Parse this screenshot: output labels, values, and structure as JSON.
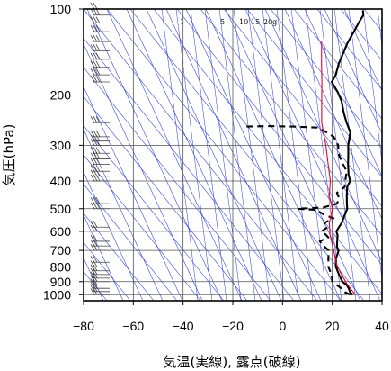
{
  "chart_data": {
    "type": "line",
    "xlabel": "気温(実線), 露点(破線)",
    "ylabel": "気圧(hPa)",
    "xlim": [
      -80,
      40
    ],
    "ylim": [
      1050,
      100
    ],
    "y_scale": "log",
    "x_ticks": [
      -80,
      -60,
      -40,
      -20,
      0,
      20,
      40
    ],
    "x_tick_labels": [
      "−80",
      "−60",
      "−40",
      "−20",
      "0",
      "20",
      "40"
    ],
    "y_ticks": [
      100,
      200,
      300,
      400,
      500,
      600,
      700,
      800,
      900,
      1000
    ],
    "y_tick_labels": [
      "100",
      "200",
      "300",
      "400",
      "500",
      "600",
      "700",
      "800",
      "900",
      "1000"
    ],
    "grid": true,
    "mixing_ratio_labels": [
      "1",
      "5",
      "10",
      "15",
      "20g"
    ],
    "colors": {
      "temperature": "#000000",
      "dewpoint": "#000000",
      "parcel": "#e8002b",
      "background_lines": "#2a37d8",
      "grid": "#555555"
    },
    "series": [
      {
        "id": "temperature",
        "style": "solid",
        "points": [
          [
            26,
            1000
          ],
          [
            24,
            980
          ],
          [
            22,
            950
          ],
          [
            20,
            925
          ],
          [
            17,
            900
          ],
          [
            13,
            850
          ],
          [
            9,
            800
          ],
          [
            6,
            750
          ],
          [
            4,
            700
          ],
          [
            2,
            680
          ],
          [
            0,
            650
          ],
          [
            -2,
            620
          ],
          [
            -4,
            600
          ],
          [
            -5,
            560
          ],
          [
            -7,
            520
          ],
          [
            -8,
            500
          ],
          [
            -10,
            480
          ],
          [
            -13,
            450
          ],
          [
            -16,
            420
          ],
          [
            -17,
            400
          ],
          [
            -20,
            380
          ],
          [
            -24,
            350
          ],
          [
            -28,
            320
          ],
          [
            -31,
            300
          ],
          [
            -35,
            270
          ],
          [
            -40,
            250
          ],
          [
            -45,
            230
          ],
          [
            -50,
            210
          ],
          [
            -55,
            195
          ],
          [
            -61,
            180
          ],
          [
            -62,
            170
          ],
          [
            -63,
            165
          ],
          [
            -65,
            155
          ],
          [
            -67,
            143
          ],
          [
            -69,
            132
          ],
          [
            -70,
            125
          ],
          [
            -71,
            118
          ],
          [
            -72,
            112
          ],
          [
            -73,
            105
          ],
          [
            -75,
            101
          ]
        ]
      },
      {
        "id": "dewpoint",
        "style": "dashed",
        "points": [
          [
            25,
            1000
          ],
          [
            22,
            980
          ],
          [
            19,
            950
          ],
          [
            16,
            925
          ],
          [
            13,
            900
          ],
          [
            10,
            850
          ],
          [
            6,
            800
          ],
          [
            3,
            750
          ],
          [
            0,
            700
          ],
          [
            -3,
            680
          ],
          [
            -7,
            650
          ],
          [
            -5,
            630
          ],
          [
            -8,
            610
          ],
          [
            -10,
            600
          ],
          [
            -9,
            580
          ],
          [
            -12,
            560
          ],
          [
            -10,
            540
          ],
          [
            -15,
            525
          ],
          [
            -20,
            505
          ],
          [
            -28,
            500
          ],
          [
            -18,
            495
          ],
          [
            -14,
            480
          ],
          [
            -15,
            460
          ],
          [
            -18,
            440
          ],
          [
            -17,
            420
          ],
          [
            -19,
            400
          ],
          [
            -22,
            370
          ],
          [
            -28,
            340
          ],
          [
            -32,
            320
          ],
          [
            -35,
            300
          ],
          [
            -40,
            280
          ],
          [
            -47,
            265
          ],
          [
            -50,
            260
          ],
          [
            -60,
            258
          ],
          [
            -70,
            257
          ],
          [
            -80,
            258
          ]
        ]
      },
      {
        "id": "parcel",
        "style": "solid",
        "points": [
          [
            27,
            1000
          ],
          [
            20,
            920
          ],
          [
            14,
            850
          ],
          [
            8,
            780
          ],
          [
            2,
            700
          ],
          [
            -5,
            620
          ],
          [
            -10,
            560
          ],
          [
            -14,
            500
          ],
          [
            -20,
            450
          ],
          [
            -25,
            400
          ],
          [
            -32,
            350
          ],
          [
            -40,
            300
          ],
          [
            -50,
            250
          ],
          [
            -58,
            210
          ],
          [
            -65,
            180
          ],
          [
            -72,
            155
          ],
          [
            -80,
            130
          ]
        ]
      }
    ],
    "wind_barbs": [
      {
        "p": 1000,
        "n": 2
      },
      {
        "p": 975,
        "n": 2
      },
      {
        "p": 950,
        "n": 2
      },
      {
        "p": 925,
        "n": 2
      },
      {
        "p": 900,
        "n": 2
      },
      {
        "p": 875,
        "n": 2
      },
      {
        "p": 850,
        "n": 2
      },
      {
        "p": 825,
        "n": 2
      },
      {
        "p": 800,
        "n": 2
      },
      {
        "p": 770,
        "n": 2
      },
      {
        "p": 700,
        "n": 2
      },
      {
        "p": 675,
        "n": 2
      },
      {
        "p": 650,
        "n": 2
      },
      {
        "p": 600,
        "n": 2
      },
      {
        "p": 580,
        "n": 2
      },
      {
        "p": 500,
        "n": 3
      },
      {
        "p": 480,
        "n": 3
      },
      {
        "p": 400,
        "n": 3
      },
      {
        "p": 385,
        "n": 3
      },
      {
        "p": 370,
        "n": 3
      },
      {
        "p": 350,
        "n": 3
      },
      {
        "p": 335,
        "n": 3
      },
      {
        "p": 320,
        "n": 3
      },
      {
        "p": 300,
        "n": 3
      },
      {
        "p": 290,
        "n": 3
      },
      {
        "p": 280,
        "n": 3
      },
      {
        "p": 250,
        "n": 3
      },
      {
        "p": 180,
        "n": 3
      },
      {
        "p": 170,
        "n": 3
      },
      {
        "p": 160,
        "n": 3
      },
      {
        "p": 150,
        "n": 3
      },
      {
        "p": 140,
        "n": 3
      },
      {
        "p": 130,
        "n": 3
      },
      {
        "p": 120,
        "n": 3
      },
      {
        "p": 112,
        "n": 3
      },
      {
        "p": 105,
        "n": 3
      },
      {
        "p": 100,
        "n": 2
      }
    ]
  }
}
